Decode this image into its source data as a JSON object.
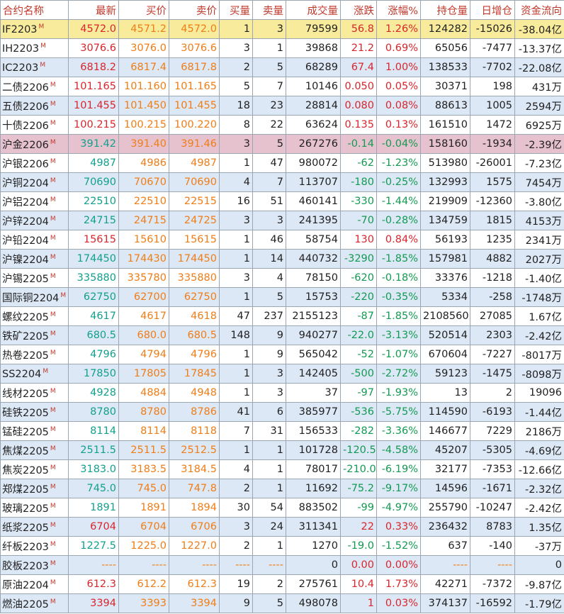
{
  "headers": [
    "合约名称",
    "最新",
    "买价",
    "卖价",
    "买量",
    "卖量",
    "成交量",
    "涨跌",
    "涨幅%",
    "持仓量",
    "日增仓",
    "资金流向"
  ],
  "rows": [
    {
      "name": "IF2203",
      "mk": "M",
      "last": "4572.0",
      "bid": "4571.2",
      "ask": "4572.0",
      "bv": "1",
      "av": "3",
      "vol": "79599",
      "chg": "56.8",
      "pct": "1.26%",
      "oi": "124282",
      "doi": "-15026",
      "flow": "-38.04亿",
      "d": 1,
      "f": -1,
      "hl": "gold"
    },
    {
      "name": "IH2203",
      "mk": "M",
      "last": "3076.6",
      "bid": "3076.0",
      "ask": "3076.6",
      "bv": "3",
      "av": "1",
      "vol": "39868",
      "chg": "21.2",
      "pct": "0.69%",
      "oi": "65056",
      "doi": "-7477",
      "flow": "-13.37亿",
      "d": 1,
      "f": -1
    },
    {
      "name": "IC2203",
      "mk": "M",
      "last": "6818.2",
      "bid": "6817.4",
      "ask": "6817.8",
      "bv": "2",
      "av": "5",
      "vol": "68289",
      "chg": "67.4",
      "pct": "1.00%",
      "oi": "138533",
      "doi": "-7702",
      "flow": "-22.08亿",
      "d": 1,
      "f": -1
    },
    {
      "name": "二债2206",
      "mk": "M",
      "last": "101.165",
      "bid": "101.160",
      "ask": "101.165",
      "bv": "5",
      "av": "7",
      "vol": "10146",
      "chg": "0.050",
      "pct": "0.05%",
      "oi": "30371",
      "doi": "198",
      "flow": "431万",
      "d": 1,
      "f": 1
    },
    {
      "name": "五债2206",
      "mk": "M",
      "last": "101.455",
      "bid": "101.450",
      "ask": "101.455",
      "bv": "18",
      "av": "23",
      "vol": "28814",
      "chg": "0.080",
      "pct": "0.08%",
      "oi": "88613",
      "doi": "1005",
      "flow": "2594万",
      "d": 1,
      "f": 1
    },
    {
      "name": "十债2206",
      "mk": "M",
      "last": "100.215",
      "bid": "100.215",
      "ask": "100.220",
      "bv": "8",
      "av": "22",
      "vol": "63624",
      "chg": "0.135",
      "pct": "0.13%",
      "oi": "161510",
      "doi": "1472",
      "flow": "6925万",
      "d": 1,
      "f": 1
    },
    {
      "name": "沪金2206",
      "mk": "M",
      "last": "391.42",
      "bid": "391.40",
      "ask": "391.46",
      "bv": "3",
      "av": "5",
      "vol": "267276",
      "chg": "-0.14",
      "pct": "-0.04%",
      "oi": "158160",
      "doi": "-1934",
      "flow": "-2.39亿",
      "d": -1,
      "f": -1,
      "hl": "red"
    },
    {
      "name": "沪银2206",
      "mk": "M",
      "last": "4987",
      "bid": "4986",
      "ask": "4987",
      "bv": "1",
      "av": "47",
      "vol": "980072",
      "chg": "-62",
      "pct": "-1.23%",
      "oi": "513980",
      "doi": "-26001",
      "flow": "-7.23亿",
      "d": -1,
      "f": -1
    },
    {
      "name": "沪铜2204",
      "mk": "M",
      "last": "70690",
      "bid": "70670",
      "ask": "70690",
      "bv": "4",
      "av": "7",
      "vol": "113707",
      "chg": "-180",
      "pct": "-0.25%",
      "oi": "132993",
      "doi": "1575",
      "flow": "7454万",
      "d": -1,
      "f": 1
    },
    {
      "name": "沪铝2204",
      "mk": "M",
      "last": "22510",
      "bid": "22510",
      "ask": "22515",
      "bv": "16",
      "av": "51",
      "vol": "460141",
      "chg": "-330",
      "pct": "-1.44%",
      "oi": "219909",
      "doi": "-12360",
      "flow": "-3.80亿",
      "d": -1,
      "f": -1
    },
    {
      "name": "沪锌2204",
      "mk": "M",
      "last": "24715",
      "bid": "24715",
      "ask": "24725",
      "bv": "3",
      "av": "3",
      "vol": "241395",
      "chg": "-70",
      "pct": "-0.28%",
      "oi": "134759",
      "doi": "1815",
      "flow": "4153万",
      "d": -1,
      "f": 1
    },
    {
      "name": "沪铅2204",
      "mk": "M",
      "last": "15615",
      "bid": "15610",
      "ask": "15615",
      "bv": "1",
      "av": "46",
      "vol": "58754",
      "chg": "130",
      "pct": "0.84%",
      "oi": "56193",
      "doi": "1235",
      "flow": "2341万",
      "d": 1,
      "f": 1
    },
    {
      "name": "沪镍2204",
      "mk": "M",
      "last": "174450",
      "bid": "174430",
      "ask": "174450",
      "bv": "1",
      "av": "14",
      "vol": "440732",
      "chg": "-3290",
      "pct": "-1.85%",
      "oi": "157981",
      "doi": "4882",
      "flow": "2027万",
      "d": -1,
      "f": 1
    },
    {
      "name": "沪锡2205",
      "mk": "M",
      "last": "335880",
      "bid": "335780",
      "ask": "335880",
      "bv": "3",
      "av": "4",
      "vol": "78150",
      "chg": "-620",
      "pct": "-0.18%",
      "oi": "33376",
      "doi": "-1218",
      "flow": "-1.40亿",
      "d": -1,
      "f": -1
    },
    {
      "name": "国际铜2204",
      "mk": "M",
      "last": "62750",
      "bid": "62700",
      "ask": "62750",
      "bv": "1",
      "av": "5",
      "vol": "15753",
      "chg": "-220",
      "pct": "-0.35%",
      "oi": "5334",
      "doi": "-258",
      "flow": "-1748万",
      "d": -1,
      "f": -1
    },
    {
      "name": "螺纹2205",
      "mk": "M",
      "last": "4617",
      "bid": "4617",
      "ask": "4618",
      "bv": "47",
      "av": "237",
      "vol": "2155123",
      "chg": "-87",
      "pct": "-1.85%",
      "oi": "2108560",
      "doi": "27085",
      "flow": "1.67亿",
      "d": -1,
      "f": 1
    },
    {
      "name": "铁矿2205",
      "mk": "M",
      "last": "680.5",
      "bid": "680.0",
      "ask": "680.5",
      "bv": "148",
      "av": "9",
      "vol": "940277",
      "chg": "-22.0",
      "pct": "-3.13%",
      "oi": "520514",
      "doi": "2303",
      "flow": "-2.42亿",
      "d": -1,
      "f": -1
    },
    {
      "name": "热卷2205",
      "mk": "M",
      "last": "4796",
      "bid": "4794",
      "ask": "4796",
      "bv": "1",
      "av": "9",
      "vol": "565042",
      "chg": "-52",
      "pct": "-1.07%",
      "oi": "670604",
      "doi": "-7227",
      "flow": "-8017万",
      "d": -1,
      "f": -1
    },
    {
      "name": "SS2204",
      "mk": "M",
      "last": "17850",
      "bid": "17805",
      "ask": "17845",
      "bv": "1",
      "av": "3",
      "vol": "142405",
      "chg": "-500",
      "pct": "-2.72%",
      "oi": "59123",
      "doi": "-1475",
      "flow": "-8098万",
      "d": -1,
      "f": -1
    },
    {
      "name": "线材2205",
      "mk": "M",
      "last": "4928",
      "bid": "4884",
      "ask": "4948",
      "bv": "1",
      "av": "3",
      "vol": "37",
      "chg": "-97",
      "pct": "-1.93%",
      "oi": "13",
      "doi": "2",
      "flow": "19096",
      "d": -1,
      "f": 1
    },
    {
      "name": "硅铁2205",
      "mk": "M",
      "last": "8780",
      "bid": "8780",
      "ask": "8786",
      "bv": "41",
      "av": "6",
      "vol": "385977",
      "chg": "-536",
      "pct": "-5.75%",
      "oi": "114590",
      "doi": "-6193",
      "flow": "-1.44亿",
      "d": -1,
      "f": -1
    },
    {
      "name": "锰硅2205",
      "mk": "M",
      "last": "8114",
      "bid": "8114",
      "ask": "8118",
      "bv": "7",
      "av": "31",
      "vol": "156533",
      "chg": "-282",
      "pct": "-3.36%",
      "oi": "146677",
      "doi": "7229",
      "flow": "2186万",
      "d": -1,
      "f": 1
    },
    {
      "name": "焦煤2205",
      "mk": "M",
      "last": "2511.5",
      "bid": "2511.5",
      "ask": "2512.5",
      "bv": "1",
      "av": "1",
      "vol": "101728",
      "chg": "-120.5",
      "pct": "-4.58%",
      "oi": "45207",
      "doi": "-5305",
      "flow": "-4.69亿",
      "d": -1,
      "f": -1
    },
    {
      "name": "焦炭2205",
      "mk": "M",
      "last": "3183.0",
      "bid": "3183.5",
      "ask": "3184.5",
      "bv": "4",
      "av": "1",
      "vol": "78017",
      "chg": "-210.0",
      "pct": "-6.19%",
      "oi": "32177",
      "doi": "-7353",
      "flow": "-12.66亿",
      "d": -1,
      "f": -1
    },
    {
      "name": "郑煤2205",
      "mk": "M",
      "last": "745.0",
      "bid": "745.0",
      "ask": "747.8",
      "bv": "2",
      "av": "1",
      "vol": "11692",
      "chg": "-75.2",
      "pct": "-9.17%",
      "oi": "14596",
      "doi": "-1671",
      "flow": "-2.32亿",
      "d": -1,
      "f": -1
    },
    {
      "name": "玻璃2205",
      "mk": "M",
      "last": "1891",
      "bid": "1891",
      "ask": "1894",
      "bv": "30",
      "av": "54",
      "vol": "883502",
      "chg": "-99",
      "pct": "-4.97%",
      "oi": "255790",
      "doi": "-10247",
      "flow": "-2.42亿",
      "d": -1,
      "f": -1
    },
    {
      "name": "纸浆2205",
      "mk": "M",
      "last": "6704",
      "bid": "6704",
      "ask": "6706",
      "bv": "3",
      "av": "24",
      "vol": "311341",
      "chg": "22",
      "pct": "0.33%",
      "oi": "236432",
      "doi": "8783",
      "flow": "1.35亿",
      "d": 1,
      "f": 1
    },
    {
      "name": "纤板2203",
      "mk": "M",
      "last": "1227.5",
      "bid": "1225.0",
      "ask": "1227.0",
      "bv": "2",
      "av": "1",
      "vol": "1270",
      "chg": "-19.0",
      "pct": "-1.52%",
      "oi": "637",
      "doi": "-140",
      "flow": "-37万",
      "d": -1,
      "f": -1
    },
    {
      "name": "胶板2203",
      "mk": "M",
      "last": "----",
      "bid": "----",
      "ask": "----",
      "bv": "----",
      "av": "----",
      "vol": "0",
      "chg": "0.00",
      "pct": "0.00%",
      "oi": "----",
      "doi": "----",
      "flow": "0",
      "d": 1,
      "f": 0,
      "empty": true
    },
    {
      "name": "原油2204",
      "mk": "M",
      "last": "612.3",
      "bid": "612.2",
      "ask": "612.3",
      "bv": "19",
      "av": "2",
      "vol": "275761",
      "chg": "10.4",
      "pct": "1.73%",
      "oi": "42271",
      "doi": "-7372",
      "flow": "-9.87亿",
      "d": 1,
      "f": -1
    },
    {
      "name": "燃油2205",
      "mk": "M",
      "last": "3394",
      "bid": "3393",
      "ask": "3394",
      "bv": "9",
      "av": "5",
      "vol": "498078",
      "chg": "1",
      "pct": "0.03%",
      "oi": "374137",
      "doi": "-16592",
      "flow": "-1.79亿",
      "d": 1,
      "f": -1
    }
  ]
}
